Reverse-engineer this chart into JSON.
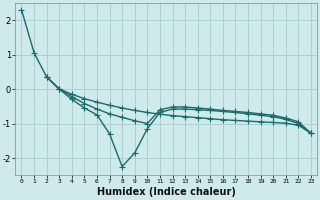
{
  "background_color": "#ceeaea",
  "grid_color": "#a8cccc",
  "line_color": "#1a6b6b",
  "xlabel": "Humidex (Indice chaleur)",
  "ylim": [
    -2.5,
    2.5
  ],
  "xlim": [
    -0.5,
    23.5
  ],
  "yticks": [
    -2,
    -1,
    0,
    1,
    2
  ],
  "xticks": [
    0,
    1,
    2,
    3,
    4,
    5,
    6,
    7,
    8,
    9,
    10,
    11,
    12,
    13,
    14,
    15,
    16,
    17,
    18,
    19,
    20,
    21,
    22,
    23
  ],
  "series": [
    {
      "x": [
        0,
        1,
        2,
        3,
        4,
        5,
        6,
        7,
        8,
        9,
        10,
        11,
        12,
        13,
        14,
        15,
        16,
        17,
        18,
        19,
        20,
        21,
        22,
        23
      ],
      "y": [
        2.3,
        1.05,
        0.35,
        0.0,
        -0.15,
        -0.28,
        -0.38,
        -0.47,
        -0.55,
        -0.62,
        -0.68,
        -0.73,
        -0.77,
        -0.8,
        -0.83,
        -0.86,
        -0.89,
        -0.91,
        -0.93,
        -0.95,
        -0.97,
        -0.99,
        -1.05,
        -1.28
      ],
      "marker": "+",
      "markersize": 4,
      "linewidth": 1.0
    },
    {
      "x": [
        2,
        3,
        4,
        5,
        6,
        7,
        8,
        9,
        10,
        11,
        12,
        13,
        14,
        15,
        16,
        17,
        18,
        19,
        20,
        21,
        22,
        23
      ],
      "y": [
        0.35,
        0.0,
        -0.3,
        -0.55,
        -0.75,
        -1.3,
        -2.25,
        -1.85,
        -1.15,
        -0.68,
        -0.58,
        -0.58,
        -0.6,
        -0.62,
        -0.65,
        -0.68,
        -0.72,
        -0.76,
        -0.8,
        -0.88,
        -1.0,
        -1.28
      ],
      "marker": "+",
      "markersize": 4,
      "linewidth": 1.0
    },
    {
      "x": [
        2,
        3,
        4,
        5,
        6,
        7,
        8,
        9,
        10,
        11,
        12,
        13,
        14,
        15,
        16,
        17,
        18,
        19,
        20,
        21,
        22,
        23
      ],
      "y": [
        0.35,
        0.0,
        -0.22,
        -0.42,
        -0.58,
        -0.72,
        -0.82,
        -0.92,
        -1.0,
        -0.6,
        -0.52,
        -0.52,
        -0.55,
        -0.58,
        -0.62,
        -0.65,
        -0.68,
        -0.72,
        -0.76,
        -0.84,
        -0.95,
        -1.28
      ],
      "marker": "+",
      "markersize": 4,
      "linewidth": 1.0
    }
  ]
}
